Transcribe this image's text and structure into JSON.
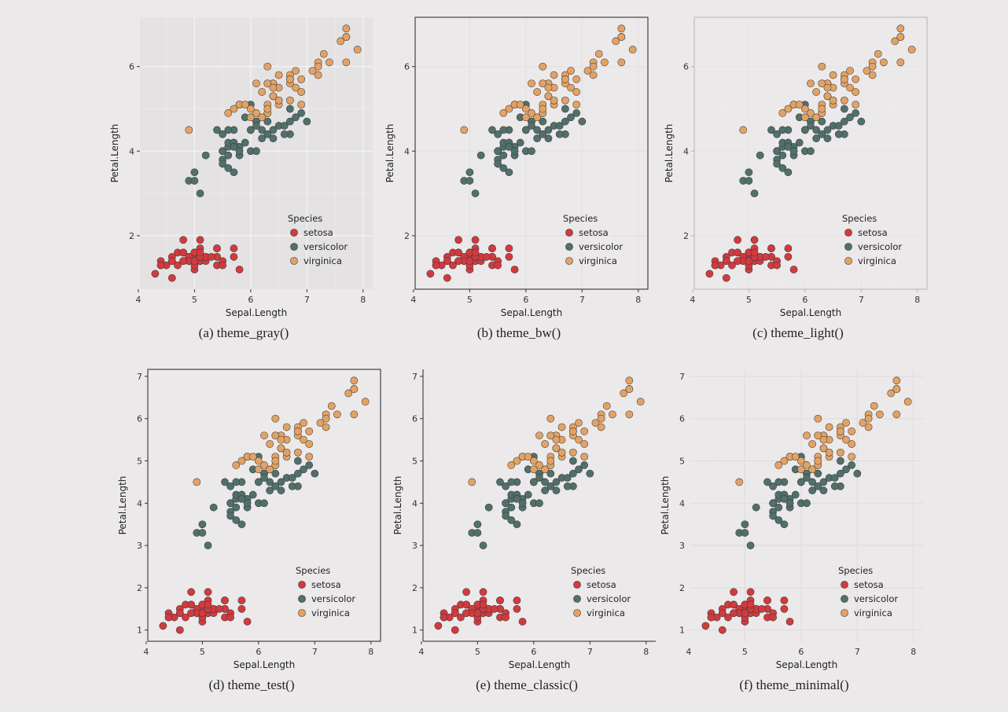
{
  "colors": {
    "setosa": "#d23a3e",
    "versicolor": "#51706b",
    "virginica": "#e3a264"
  },
  "chart_data": [
    {
      "type": "scatter",
      "caption": "(a) theme_gray()",
      "theme": "gray",
      "xlabel": "Sepal.Length",
      "ylabel": "Petal.Length",
      "xlim": [
        4.2,
        8.0
      ],
      "ylim": [
        1.0,
        6.9
      ],
      "xticks": [
        4,
        5,
        6,
        7,
        8
      ],
      "yticks": [
        2,
        4,
        6
      ],
      "legend_title": "Species",
      "legend_position": "bottom-right",
      "series": [
        {
          "name": "setosa",
          "x": [
            5.1,
            4.9,
            4.7,
            4.6,
            5.0,
            5.4,
            4.6,
            5.0,
            4.4,
            4.9,
            5.4,
            4.8,
            4.8,
            4.3,
            5.8,
            5.7,
            5.4,
            5.1,
            5.7,
            5.1,
            5.4,
            5.1,
            4.6,
            5.1,
            4.8,
            5.0,
            5.0,
            5.2,
            5.2,
            4.7,
            4.8,
            5.4,
            5.2,
            5.5,
            4.9,
            5.0,
            5.5,
            4.9,
            4.4,
            5.1,
            5.0,
            4.5,
            4.4,
            5.0,
            5.1,
            4.8,
            5.1,
            4.6,
            5.3,
            5.0
          ],
          "y": [
            1.4,
            1.4,
            1.3,
            1.5,
            1.4,
            1.7,
            1.4,
            1.5,
            1.4,
            1.5,
            1.5,
            1.6,
            1.4,
            1.1,
            1.2,
            1.5,
            1.3,
            1.4,
            1.7,
            1.5,
            1.7,
            1.5,
            1.0,
            1.7,
            1.9,
            1.6,
            1.6,
            1.5,
            1.4,
            1.6,
            1.6,
            1.5,
            1.5,
            1.4,
            1.5,
            1.2,
            1.3,
            1.4,
            1.3,
            1.5,
            1.3,
            1.3,
            1.3,
            1.6,
            1.9,
            1.4,
            1.6,
            1.4,
            1.5,
            1.4
          ]
        },
        {
          "name": "versicolor",
          "x": [
            7.0,
            6.4,
            6.9,
            5.5,
            6.5,
            5.7,
            6.3,
            4.9,
            6.6,
            5.2,
            5.0,
            5.9,
            6.0,
            6.1,
            5.6,
            6.7,
            5.6,
            5.8,
            6.2,
            5.6,
            5.9,
            6.1,
            6.3,
            6.1,
            6.4,
            6.6,
            6.8,
            6.7,
            6.0,
            5.7,
            5.5,
            5.5,
            5.8,
            6.0,
            5.4,
            6.0,
            6.7,
            6.3,
            5.6,
            5.5,
            5.5,
            6.1,
            5.8,
            5.0,
            5.6,
            5.7,
            5.7,
            6.2,
            5.1,
            5.7
          ],
          "y": [
            4.7,
            4.5,
            4.9,
            4.0,
            4.6,
            4.5,
            4.7,
            3.3,
            4.6,
            3.9,
            3.5,
            4.2,
            4.0,
            4.7,
            3.6,
            4.4,
            4.5,
            4.1,
            4.5,
            3.9,
            4.8,
            4.0,
            4.9,
            4.7,
            4.3,
            4.4,
            4.8,
            5.0,
            4.5,
            3.5,
            3.8,
            3.7,
            3.9,
            5.1,
            4.5,
            4.5,
            4.7,
            4.4,
            4.1,
            4.0,
            4.4,
            4.6,
            4.0,
            3.3,
            4.2,
            4.2,
            4.2,
            4.3,
            3.0,
            4.1
          ]
        },
        {
          "name": "virginica",
          "x": [
            6.3,
            5.8,
            7.1,
            6.3,
            6.5,
            7.6,
            4.9,
            7.3,
            6.7,
            7.2,
            6.5,
            6.4,
            6.8,
            5.7,
            5.8,
            6.4,
            6.5,
            7.7,
            7.7,
            6.0,
            6.9,
            5.6,
            7.7,
            6.3,
            6.7,
            7.2,
            6.2,
            6.1,
            6.4,
            7.2,
            7.4,
            7.9,
            6.4,
            6.3,
            6.1,
            7.7,
            6.3,
            6.4,
            6.0,
            6.9,
            6.7,
            6.9,
            5.8,
            6.8,
            6.7,
            6.7,
            6.3,
            6.5,
            6.2,
            5.9
          ],
          "y": [
            6.0,
            5.1,
            5.9,
            5.6,
            5.8,
            6.6,
            4.5,
            6.3,
            5.8,
            6.1,
            5.1,
            5.3,
            5.5,
            5.0,
            5.1,
            5.3,
            5.5,
            6.7,
            6.9,
            5.0,
            5.7,
            4.9,
            6.7,
            4.9,
            5.7,
            6.0,
            4.8,
            4.9,
            5.6,
            5.8,
            6.1,
            6.4,
            5.6,
            5.1,
            5.6,
            6.1,
            5.6,
            5.5,
            4.8,
            5.4,
            5.6,
            5.1,
            5.1,
            5.9,
            5.7,
            5.2,
            5.0,
            5.2,
            5.4,
            5.1
          ]
        }
      ]
    },
    {
      "type": "scatter",
      "caption": "(b) theme_bw()",
      "theme": "bw",
      "xlabel": "Sepal.Length",
      "ylabel": "Petal.Length",
      "xlim": [
        4.2,
        8.0
      ],
      "ylim": [
        1.0,
        6.9
      ],
      "xticks": [
        4,
        5,
        6,
        7,
        8
      ],
      "yticks": [
        2,
        4,
        6
      ],
      "legend_title": "Species",
      "legend_position": "bottom-right",
      "series_ref": 0
    },
    {
      "type": "scatter",
      "caption": "(c) theme_light()",
      "theme": "light",
      "xlabel": "Sepal.Length",
      "ylabel": "Petal.Length",
      "xlim": [
        4.2,
        8.0
      ],
      "ylim": [
        1.0,
        6.9
      ],
      "xticks": [
        4,
        5,
        6,
        7,
        8
      ],
      "yticks": [
        2,
        4,
        6
      ],
      "legend_title": "Species",
      "legend_position": "bottom-right",
      "series_ref": 0
    },
    {
      "type": "scatter",
      "caption": "(d) theme_test()",
      "theme": "test",
      "xlabel": "Sepal.Length",
      "ylabel": "Petal.Length",
      "xlim": [
        4.2,
        8.0
      ],
      "ylim": [
        1.0,
        6.9
      ],
      "xticks": [
        4,
        5,
        6,
        7,
        8
      ],
      "yticks": [
        1,
        2,
        3,
        4,
        5,
        6,
        7
      ],
      "legend_title": "Species",
      "legend_position": "bottom-right",
      "series_ref": 0
    },
    {
      "type": "scatter",
      "caption": "(e) theme_classic()",
      "theme": "classic",
      "xlabel": "Sepal.Length",
      "ylabel": "Petal.Length",
      "xlim": [
        4.2,
        8.0
      ],
      "ylim": [
        1.0,
        6.9
      ],
      "xticks": [
        4,
        5,
        6,
        7,
        8
      ],
      "yticks": [
        1,
        2,
        3,
        4,
        5,
        6,
        7
      ],
      "legend_title": "Species",
      "legend_position": "bottom-right",
      "series_ref": 0
    },
    {
      "type": "scatter",
      "caption": "(f) theme_minimal()",
      "theme": "minimal",
      "xlabel": "Sepal.Length",
      "ylabel": "Petal.Length",
      "xlim": [
        4.2,
        8.0
      ],
      "ylim": [
        1.0,
        6.9
      ],
      "xticks": [
        4,
        5,
        6,
        7,
        8
      ],
      "yticks": [
        1,
        2,
        3,
        4,
        5,
        6,
        7
      ],
      "legend_title": "Species",
      "legend_position": "bottom-right",
      "series_ref": 0
    }
  ]
}
